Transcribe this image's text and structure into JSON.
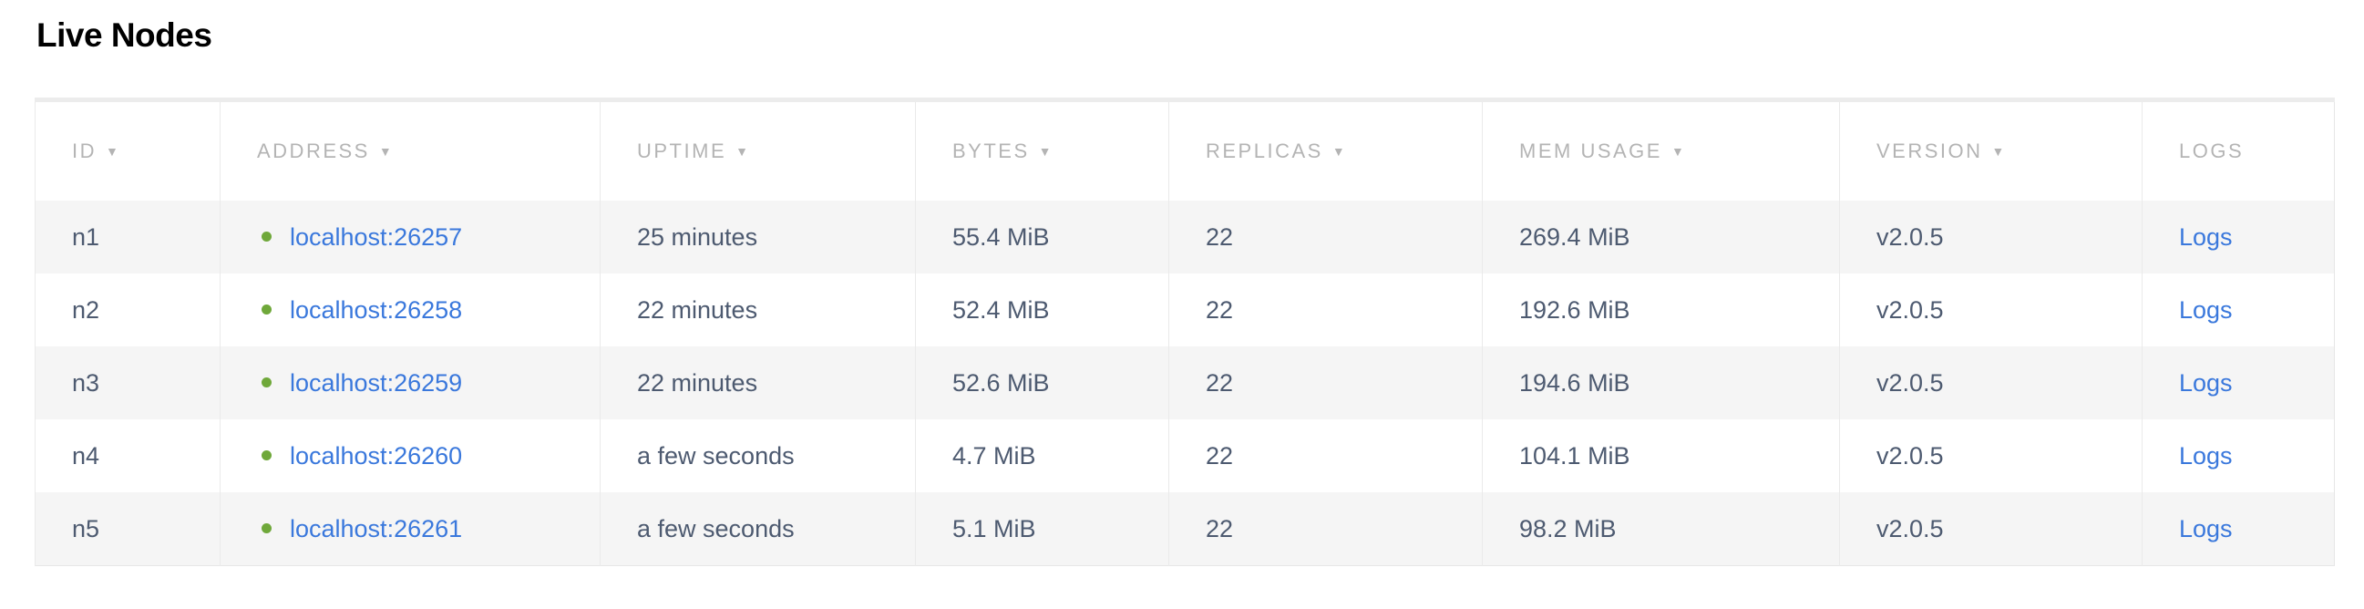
{
  "title": "Live Nodes",
  "colors": {
    "link": "#3a78dc",
    "status_live": "#6fa83a",
    "header_text": "#b4b4b4",
    "stripe": "#f5f5f5"
  },
  "columns": [
    {
      "label": "ID",
      "sortable": true
    },
    {
      "label": "Address",
      "sortable": true
    },
    {
      "label": "Uptime",
      "sortable": true
    },
    {
      "label": "Bytes",
      "sortable": true
    },
    {
      "label": "Replicas",
      "sortable": true
    },
    {
      "label": "Mem Usage",
      "sortable": true
    },
    {
      "label": "Version",
      "sortable": true
    },
    {
      "label": "Logs",
      "sortable": false
    }
  ],
  "sort_icon": "caret-down-icon",
  "sort_glyph": "▼",
  "rows": [
    {
      "id": "n1",
      "address": "localhost:26257",
      "status": "live",
      "uptime": "25 minutes",
      "bytes": "55.4 MiB",
      "replicas": "22",
      "mem": "269.4 MiB",
      "version": "v2.0.5",
      "logs": "Logs"
    },
    {
      "id": "n2",
      "address": "localhost:26258",
      "status": "live",
      "uptime": "22 minutes",
      "bytes": "52.4 MiB",
      "replicas": "22",
      "mem": "192.6 MiB",
      "version": "v2.0.5",
      "logs": "Logs"
    },
    {
      "id": "n3",
      "address": "localhost:26259",
      "status": "live",
      "uptime": "22 minutes",
      "bytes": "52.6 MiB",
      "replicas": "22",
      "mem": "194.6 MiB",
      "version": "v2.0.5",
      "logs": "Logs"
    },
    {
      "id": "n4",
      "address": "localhost:26260",
      "status": "live",
      "uptime": "a few seconds",
      "bytes": "4.7 MiB",
      "replicas": "22",
      "mem": "104.1 MiB",
      "version": "v2.0.5",
      "logs": "Logs"
    },
    {
      "id": "n5",
      "address": "localhost:26261",
      "status": "live",
      "uptime": "a few seconds",
      "bytes": "5.1 MiB",
      "replicas": "22",
      "mem": "98.2 MiB",
      "version": "v2.0.5",
      "logs": "Logs"
    }
  ]
}
